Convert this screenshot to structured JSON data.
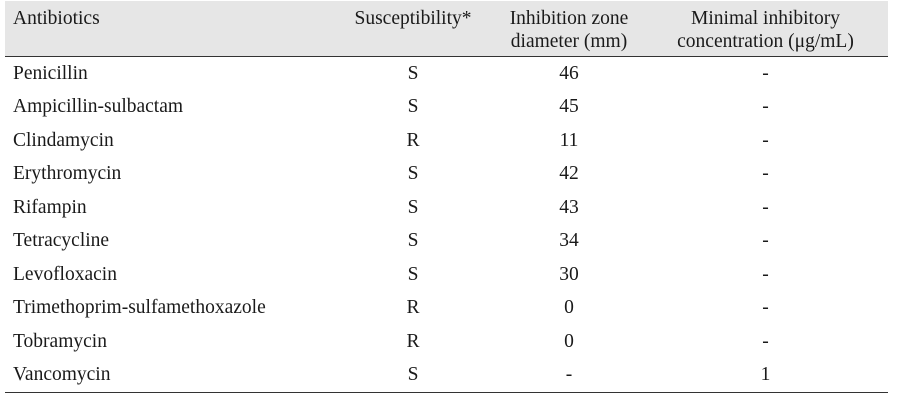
{
  "table": {
    "headers": [
      "Antibiotics",
      "Susceptibility*",
      "Inhibition zone diameter (mm)",
      "Minimal inhibitory concentration (μg/mL)"
    ],
    "header_lines": {
      "antibiotics": [
        "Antibiotics"
      ],
      "susceptibility": [
        "Susceptibility*"
      ],
      "zone": [
        "Inhibition zone",
        "diameter (mm)"
      ],
      "mic": [
        "Minimal inhibitory",
        "concentration (μg/mL)"
      ]
    },
    "rows": [
      {
        "antibiotic": "Penicillin",
        "susceptibility": "S",
        "zone": "46",
        "mic": "-"
      },
      {
        "antibiotic": "Ampicillin-sulbactam",
        "susceptibility": "S",
        "zone": "45",
        "mic": "-"
      },
      {
        "antibiotic": "Clindamycin",
        "susceptibility": "R",
        "zone": "11",
        "mic": "-"
      },
      {
        "antibiotic": "Erythromycin",
        "susceptibility": "S",
        "zone": "42",
        "mic": "-"
      },
      {
        "antibiotic": "Rifampin",
        "susceptibility": "S",
        "zone": "43",
        "mic": "-"
      },
      {
        "antibiotic": "Tetracycline",
        "susceptibility": "S",
        "zone": "34",
        "mic": "-"
      },
      {
        "antibiotic": "Levofloxacin",
        "susceptibility": "S",
        "zone": "30",
        "mic": "-"
      },
      {
        "antibiotic": "Trimethoprim-sulfamethoxazole",
        "susceptibility": "R",
        "zone": "0",
        "mic": "-"
      },
      {
        "antibiotic": "Tobramycin",
        "susceptibility": "R",
        "zone": "0",
        "mic": "-"
      },
      {
        "antibiotic": "Vancomycin",
        "susceptibility": "S",
        "zone": "-",
        "mic": "1"
      }
    ]
  },
  "colors": {
    "header_background": "#e6e6e6",
    "rule": "#333333",
    "text": "#1a1a1a"
  }
}
